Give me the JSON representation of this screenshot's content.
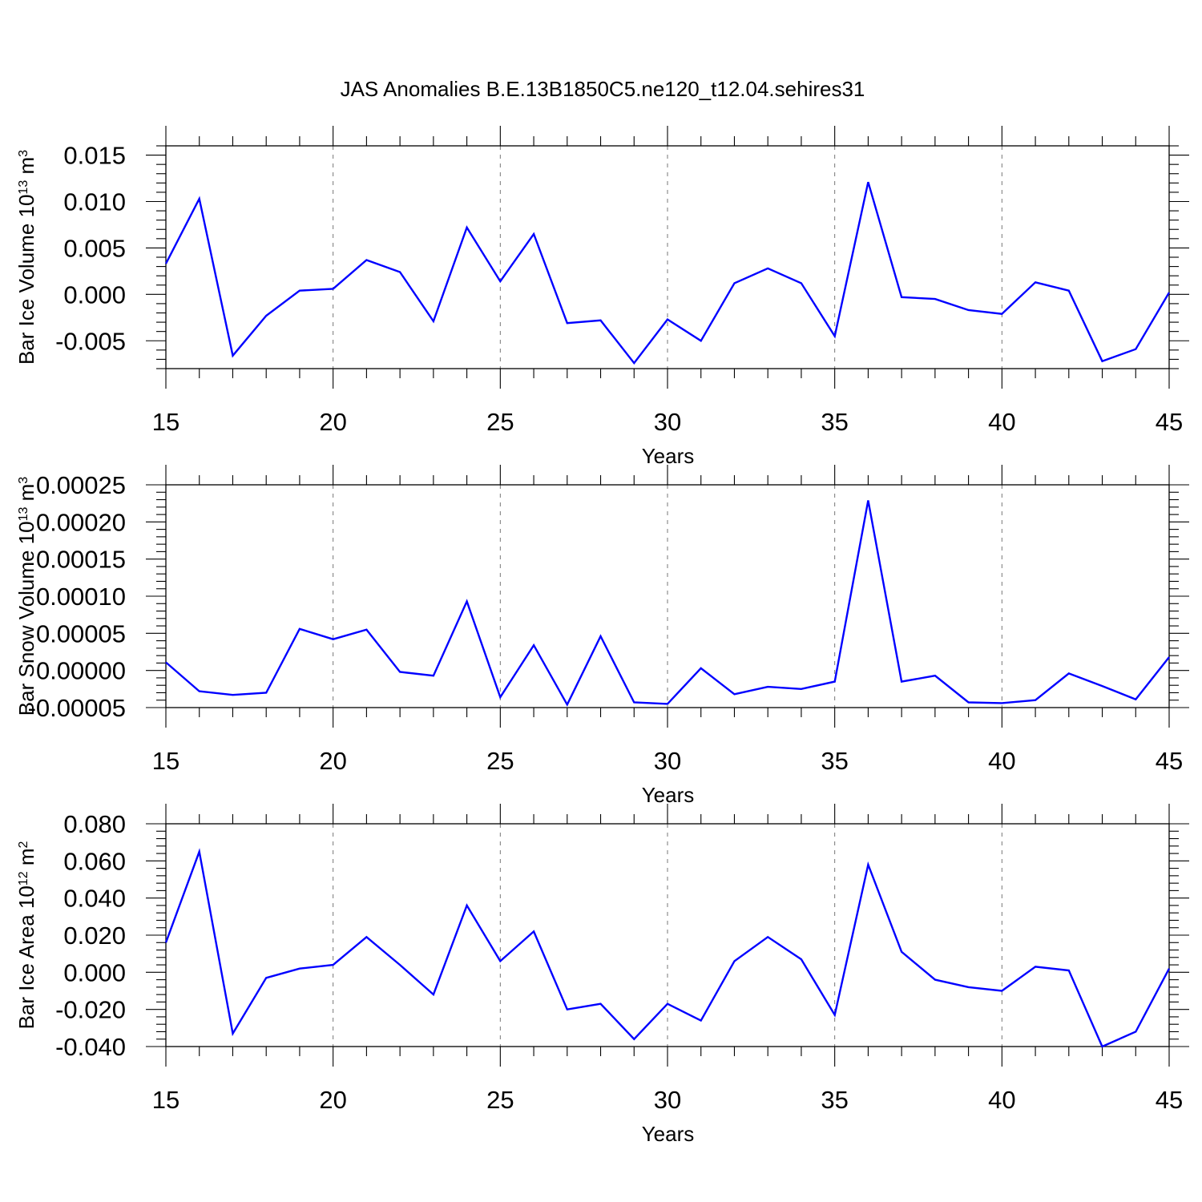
{
  "title": "JAS Anomalies B.E.13B1850C5.ne120_t12.04.sehires31",
  "colors": {
    "series": "#0000ff",
    "axes": "#000000",
    "grid": "#777777"
  },
  "chart_data": [
    {
      "type": "line",
      "xlabel": "Years",
      "ylabel": {
        "main": "Bar Ice Volume 10",
        "exp": "13",
        "unit": " m",
        "unit_exp": "3"
      },
      "xlim": [
        15,
        45
      ],
      "ylim": [
        -0.008,
        0.016
      ],
      "xticks": [
        15,
        20,
        25,
        30,
        35,
        40,
        45
      ],
      "xtick_labels": [
        "15",
        "20",
        "25",
        "30",
        "35",
        "40",
        "45"
      ],
      "yticks": [
        -0.005,
        0.0,
        0.005,
        0.01,
        0.015
      ],
      "ytick_labels": [
        "-0.005",
        "0.000",
        "0.005",
        "0.010",
        "0.015"
      ],
      "grid": "vertical dashed at major x ticks",
      "x": [
        15,
        16,
        17,
        18,
        19,
        20,
        21,
        22,
        23,
        24,
        25,
        26,
        27,
        28,
        29,
        30,
        31,
        32,
        33,
        34,
        35,
        36,
        37,
        38,
        39,
        40,
        41,
        42,
        43,
        44,
        45
      ],
      "values": [
        0.0033,
        0.0103,
        -0.0066,
        -0.0023,
        0.0004,
        0.0006,
        0.0037,
        0.0024,
        -0.0029,
        0.0072,
        0.0014,
        0.0065,
        -0.0031,
        -0.0028,
        -0.0074,
        -0.0027,
        -0.005,
        0.0012,
        0.0028,
        0.0012,
        -0.0045,
        0.0121,
        -0.0003,
        -0.0005,
        -0.0017,
        -0.0021,
        0.0013,
        0.0004,
        -0.0072,
        -0.0059,
        0.0002
      ]
    },
    {
      "type": "line",
      "xlabel": "Years",
      "ylabel": {
        "main": "Bar Snow Volume 10",
        "exp": "13",
        "unit": " m",
        "unit_exp": "3"
      },
      "xlim": [
        15,
        45
      ],
      "ylim": [
        -5e-05,
        0.00025
      ],
      "xticks": [
        15,
        20,
        25,
        30,
        35,
        40,
        45
      ],
      "xtick_labels": [
        "15",
        "20",
        "25",
        "30",
        "35",
        "40",
        "45"
      ],
      "yticks": [
        -5e-05,
        0.0,
        5e-05,
        0.0001,
        0.00015,
        0.0002,
        0.00025
      ],
      "ytick_labels": [
        "-0.00005",
        "0.00000",
        "0.00005",
        "0.00010",
        "0.00015",
        "0.00020",
        "0.00025"
      ],
      "grid": "vertical dashed at major x ticks",
      "x": [
        15,
        16,
        17,
        18,
        19,
        20,
        21,
        22,
        23,
        24,
        25,
        26,
        27,
        28,
        29,
        30,
        31,
        32,
        33,
        34,
        35,
        36,
        37,
        38,
        39,
        40,
        41,
        42,
        43,
        44,
        45
      ],
      "values": [
        1.1e-05,
        -2.8e-05,
        -3.3e-05,
        -3e-05,
        5.6e-05,
        4.2e-05,
        5.5e-05,
        -2e-06,
        -7e-06,
        9.3e-05,
        -3.6e-05,
        3.4e-05,
        -4.6e-05,
        4.6e-05,
        -4.3e-05,
        -4.5e-05,
        3e-06,
        -3.2e-05,
        -2.2e-05,
        -2.5e-05,
        -1.5e-05,
        0.000229,
        -1.5e-05,
        -7e-06,
        -4.3e-05,
        -4.4e-05,
        -4e-05,
        -4e-06,
        -2.1e-05,
        -3.9e-05,
        1.8e-05
      ]
    },
    {
      "type": "line",
      "xlabel": "Years",
      "ylabel": {
        "main": "Bar Ice Area 10",
        "exp": "12",
        "unit": " m",
        "unit_exp": "2"
      },
      "xlim": [
        15,
        45
      ],
      "ylim": [
        -0.04,
        0.08
      ],
      "xticks": [
        15,
        20,
        25,
        30,
        35,
        40,
        45
      ],
      "xtick_labels": [
        "15",
        "20",
        "25",
        "30",
        "35",
        "40",
        "45"
      ],
      "yticks": [
        -0.04,
        -0.02,
        0.0,
        0.02,
        0.04,
        0.06,
        0.08
      ],
      "ytick_labels": [
        "-0.040",
        "-0.020",
        "0.000",
        "0.020",
        "0.040",
        "0.060",
        "0.080"
      ],
      "grid": "vertical dashed at major x ticks",
      "x": [
        15,
        16,
        17,
        18,
        19,
        20,
        21,
        22,
        23,
        24,
        25,
        26,
        27,
        28,
        29,
        30,
        31,
        32,
        33,
        34,
        35,
        36,
        37,
        38,
        39,
        40,
        41,
        42,
        43,
        44,
        45
      ],
      "values": [
        0.016,
        0.065,
        -0.033,
        -0.003,
        0.002,
        0.004,
        0.019,
        0.004,
        -0.012,
        0.036,
        0.006,
        0.022,
        -0.02,
        -0.017,
        -0.036,
        -0.017,
        -0.026,
        0.006,
        0.019,
        0.007,
        -0.023,
        0.058,
        0.011,
        -0.004,
        -0.008,
        -0.01,
        0.003,
        0.001,
        -0.04,
        -0.032,
        0.002
      ]
    }
  ]
}
